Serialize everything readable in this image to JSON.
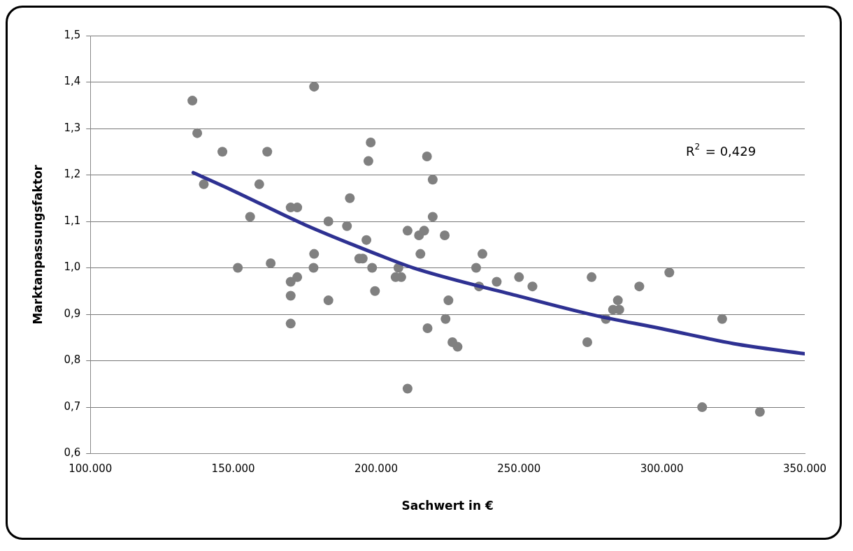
{
  "chart_data": {
    "type": "scatter",
    "xlabel": "Sachwert in €",
    "ylabel": "Marktanpassungsfaktor",
    "xlim": [
      100000,
      350000
    ],
    "xticks": [
      {
        "value": 100000,
        "label": "100.000"
      },
      {
        "value": 150000,
        "label": "150.000"
      },
      {
        "value": 200000,
        "label": "200.000"
      },
      {
        "value": 250000,
        "label": "250.000"
      },
      {
        "value": 300000,
        "label": "300.000"
      },
      {
        "value": 350000,
        "label": "350.000"
      }
    ],
    "ylim": [
      0.6,
      1.5
    ],
    "yticks": [
      {
        "value": 0.6,
        "label": "0,6"
      },
      {
        "value": 0.7,
        "label": "0,7"
      },
      {
        "value": 0.8,
        "label": "0,8"
      },
      {
        "value": 0.9,
        "label": "0,9"
      },
      {
        "value": 1.0,
        "label": "1,0"
      },
      {
        "value": 1.1,
        "label": "1,1"
      },
      {
        "value": 1.2,
        "label": "1,2"
      },
      {
        "value": 1.3,
        "label": "1,3"
      },
      {
        "value": 1.4,
        "label": "1,4"
      },
      {
        "value": 1.5,
        "label": "1,5"
      }
    ],
    "grid": "y",
    "legend": false,
    "marker": "circle",
    "annotations": [
      "R$^{2}$ = 0,429"
    ],
    "series": [
      {
        "type": "scatter",
        "color": "#808080",
        "x": [
          135700,
          137400,
          139700,
          146200,
          151600,
          155900,
          159100,
          161900,
          163100,
          170100,
          172400,
          170100,
          170100,
          170100,
          172400,
          178100,
          178300,
          178300,
          183300,
          183300,
          189800,
          190800,
          194100,
          195300,
          196600,
          197300,
          198100,
          198600,
          199600,
          206800,
          207800,
          208800,
          211000,
          211000,
          215000,
          215500,
          216800,
          217800,
          218000,
          219800,
          219800,
          224000,
          224300,
          225300,
          226700,
          228500,
          235000,
          236000,
          237200,
          242200,
          250000,
          254700,
          273900,
          275400,
          280400,
          282900,
          284600,
          285100,
          292100,
          302600,
          314100,
          321100,
          334300
        ],
        "values": [
          1.36,
          1.29,
          1.18,
          1.25,
          1.0,
          1.11,
          1.18,
          1.25,
          1.01,
          1.13,
          1.13,
          0.97,
          0.94,
          0.88,
          0.98,
          1.0,
          1.03,
          1.39,
          1.1,
          0.93,
          1.09,
          1.15,
          1.02,
          1.02,
          1.06,
          1.23,
          1.27,
          1.0,
          0.95,
          0.98,
          1.0,
          0.98,
          1.08,
          0.74,
          1.07,
          1.03,
          1.08,
          1.24,
          0.87,
          1.19,
          1.11,
          1.07,
          0.89,
          0.93,
          0.84,
          0.83,
          1.0,
          0.96,
          1.03,
          0.97,
          0.98,
          0.96,
          0.84,
          0.98,
          0.89,
          0.91,
          0.93,
          0.91,
          0.96,
          0.99,
          0.7,
          0.89,
          0.69
        ]
      },
      {
        "type": "line",
        "color": "#2e3192",
        "marker": "none",
        "x": [
          136000,
          150000,
          175000,
          200000,
          213000,
          250000,
          275000,
          300000,
          325000,
          350000
        ],
        "values": [
          1.205,
          1.166,
          1.093,
          1.03,
          1.0,
          0.939,
          0.9,
          0.869,
          0.837,
          0.815
        ]
      }
    ]
  }
}
